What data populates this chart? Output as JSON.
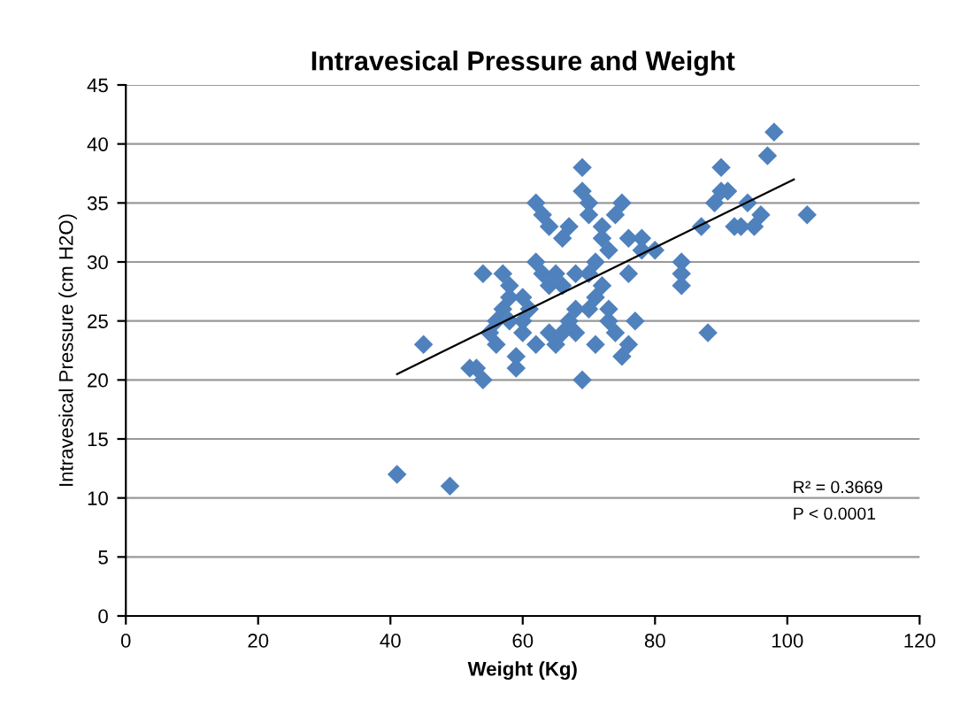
{
  "chart_data": {
    "type": "scatter",
    "title": "Intravesical Pressure and Weight",
    "xlabel": "Weight (Kg)",
    "ylabel": "Intravesical Pressure (cm H2O)",
    "xlim": [
      0,
      120
    ],
    "xticks": [
      0,
      20,
      40,
      60,
      80,
      100,
      120
    ],
    "ylim": [
      0,
      45
    ],
    "yticks": [
      0,
      5,
      10,
      15,
      20,
      25,
      30,
      35,
      40,
      45
    ],
    "grid": "y",
    "marker": "diamond",
    "legend": false,
    "annotations": [
      "R² = 0.3669",
      "P < 0.0001"
    ],
    "series": [
      {
        "color": "#4f81bd",
        "x": [
          41,
          49,
          45,
          52,
          53,
          54,
          54,
          57,
          55,
          56,
          57,
          58,
          58,
          59,
          59,
          60,
          60,
          61,
          62,
          63,
          64,
          62,
          63,
          64,
          64,
          65,
          65,
          66,
          66,
          67,
          67,
          68,
          68,
          69,
          69,
          69,
          70,
          70,
          70,
          71,
          71,
          71,
          72,
          72,
          72,
          73,
          73,
          73,
          74,
          74,
          75,
          75,
          76,
          76,
          76,
          77,
          78,
          78,
          80,
          84,
          84,
          84,
          88,
          87,
          89,
          90,
          90,
          91,
          92,
          93,
          94,
          95,
          96,
          97,
          98,
          103,
          66,
          62,
          58,
          56,
          60,
          68,
          70
        ],
        "values": [
          12,
          11,
          23,
          21,
          21,
          20,
          29,
          29,
          24,
          25,
          26,
          27,
          28,
          22,
          21,
          25,
          24,
          26,
          35,
          34,
          33,
          30,
          29,
          28,
          24,
          23,
          29,
          28,
          32,
          33,
          25,
          26,
          24,
          36,
          38,
          20,
          35,
          34,
          29,
          30,
          27,
          23,
          33,
          32,
          28,
          31,
          26,
          25,
          34,
          24,
          35,
          22,
          32,
          29,
          23,
          25,
          32,
          31,
          31,
          30,
          29,
          28,
          24,
          33,
          35,
          38,
          36,
          36,
          33,
          33,
          35,
          33,
          34,
          39,
          41,
          34,
          24,
          23,
          25,
          23,
          27,
          29,
          26
        ]
      },
      {
        "type": "line",
        "color": "#000000",
        "marker": "none",
        "x": [
          41,
          101
        ],
        "values": [
          20.5,
          37
        ]
      }
    ]
  }
}
